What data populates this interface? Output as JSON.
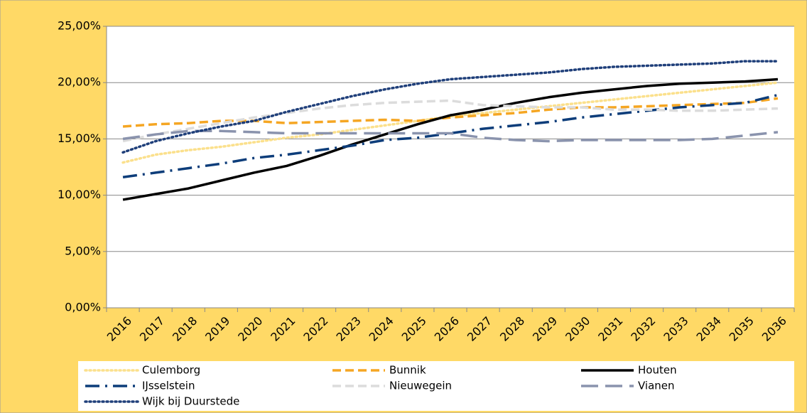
{
  "chart_data": {
    "type": "line",
    "categories": [
      "2016",
      "2017",
      "2018",
      "2019",
      "2020",
      "2021",
      "2022",
      "2023",
      "2024",
      "2025",
      "2026",
      "2027",
      "2028",
      "2029",
      "2030",
      "2031",
      "2032",
      "2033",
      "2034",
      "2035",
      "2036"
    ],
    "ylim": [
      0,
      25
    ],
    "yticks": [
      {
        "value": 0,
        "label": "0,00%"
      },
      {
        "value": 5,
        "label": "5,00%"
      },
      {
        "value": 10,
        "label": "10,00%"
      },
      {
        "value": 15,
        "label": "15,00%"
      },
      {
        "value": 20,
        "label": "20,00%"
      },
      {
        "value": 25,
        "label": "25,00%"
      }
    ],
    "grid": true,
    "legend": "bottom",
    "series": [
      {
        "name": "Culemborg",
        "color": "#fbe08c",
        "style": "dotted",
        "values": [
          12.9,
          13.6,
          14.0,
          14.3,
          14.7,
          15.1,
          15.4,
          15.8,
          16.2,
          16.6,
          17.0,
          17.3,
          17.6,
          17.9,
          18.2,
          18.5,
          18.8,
          19.1,
          19.4,
          19.7,
          20.0
        ]
      },
      {
        "name": "Bunnik",
        "color": "#f5a623",
        "style": "dashed",
        "values": [
          16.1,
          16.3,
          16.4,
          16.6,
          16.6,
          16.4,
          16.5,
          16.6,
          16.7,
          16.6,
          16.9,
          17.1,
          17.3,
          17.6,
          17.8,
          17.8,
          17.9,
          18.0,
          18.1,
          18.2,
          18.6
        ]
      },
      {
        "name": "Houten",
        "color": "#000000",
        "style": "solid",
        "values": [
          9.6,
          10.1,
          10.6,
          11.3,
          12.0,
          12.6,
          13.5,
          14.5,
          15.4,
          16.3,
          17.1,
          17.6,
          18.2,
          18.7,
          19.1,
          19.4,
          19.7,
          19.9,
          20.0,
          20.1,
          20.3
        ]
      },
      {
        "name": "IJsselstein",
        "color": "#0d3d7a",
        "style": "dash-dot",
        "values": [
          11.6,
          12.0,
          12.4,
          12.8,
          13.3,
          13.6,
          14.0,
          14.4,
          14.9,
          15.1,
          15.5,
          15.9,
          16.2,
          16.5,
          16.9,
          17.2,
          17.5,
          17.8,
          18.0,
          18.2,
          18.9
        ]
      },
      {
        "name": "Nieuwegein",
        "color": "#dcdcdc",
        "style": "dashed",
        "values": [
          14.8,
          15.4,
          15.9,
          16.4,
          16.9,
          17.3,
          17.7,
          18.0,
          18.2,
          18.3,
          18.4,
          18.0,
          17.9,
          17.8,
          17.8,
          17.6,
          17.6,
          17.5,
          17.5,
          17.6,
          17.7
        ]
      },
      {
        "name": "Vianen",
        "color": "#8a93ad",
        "style": "long-dash",
        "values": [
          15.0,
          15.4,
          15.7,
          15.7,
          15.6,
          15.5,
          15.5,
          15.5,
          15.5,
          15.5,
          15.5,
          15.1,
          14.9,
          14.8,
          14.9,
          14.9,
          14.9,
          14.9,
          15.0,
          15.3,
          15.6
        ]
      },
      {
        "name": "Wijk bij Duurstede",
        "color": "#1f3f7a",
        "style": "dotted",
        "values": [
          13.8,
          14.8,
          15.5,
          16.1,
          16.6,
          17.4,
          18.1,
          18.8,
          19.4,
          19.9,
          20.3,
          20.5,
          20.7,
          20.9,
          21.2,
          21.4,
          21.5,
          21.6,
          21.7,
          21.9,
          21.9
        ]
      }
    ]
  }
}
